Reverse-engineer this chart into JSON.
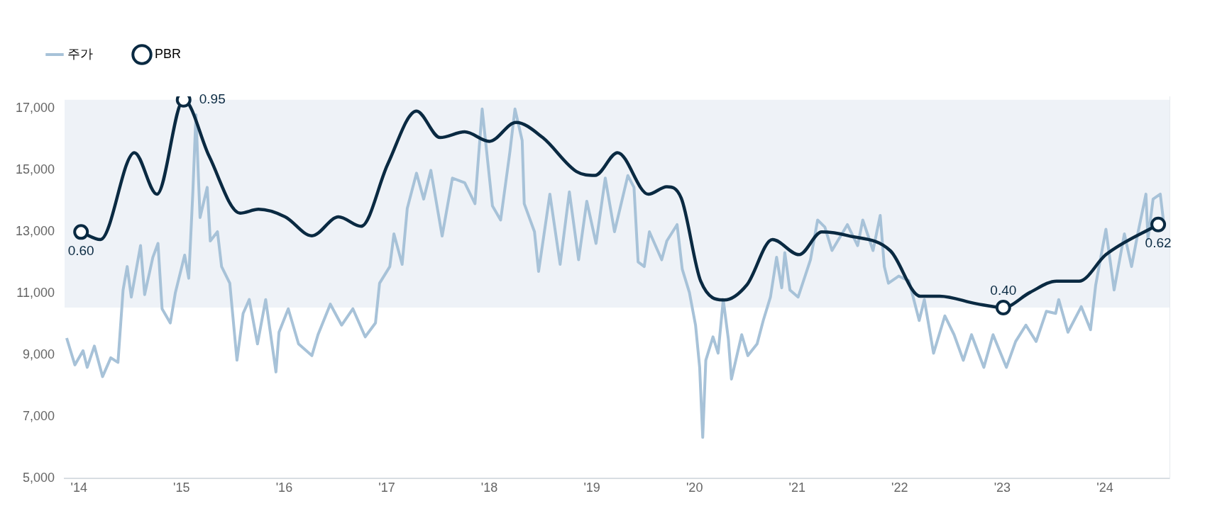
{
  "chart_data": {
    "type": "line",
    "legend": "top left",
    "grid": false,
    "xlim": [
      2013.86,
      2024.63
    ],
    "xticks": [
      {
        "value": 2014,
        "label": "'14"
      },
      {
        "value": 2015,
        "label": "'15"
      },
      {
        "value": 2016,
        "label": "'16"
      },
      {
        "value": 2017,
        "label": "'17"
      },
      {
        "value": 2018,
        "label": "'18"
      },
      {
        "value": 2019,
        "label": "'19"
      },
      {
        "value": 2020,
        "label": "'20"
      },
      {
        "value": 2021,
        "label": "'21"
      },
      {
        "value": 2022,
        "label": "'22"
      },
      {
        "value": 2023,
        "label": "'23"
      },
      {
        "value": 2024,
        "label": "'24"
      }
    ],
    "ylim": [
      5000,
      17400
    ],
    "yticks": [
      {
        "value": 5000,
        "label": "5,000"
      },
      {
        "value": 7000,
        "label": "7,000"
      },
      {
        "value": 9000,
        "label": "9,000"
      },
      {
        "value": 11000,
        "label": "11,000"
      },
      {
        "value": 13000,
        "label": "13,000"
      },
      {
        "value": 15000,
        "label": "15,000"
      },
      {
        "value": 17000,
        "label": "17,000"
      }
    ],
    "y2lim": [
      -0.053,
      0.959
    ],
    "bands": [
      {
        "axis": "y2",
        "from": 0.4,
        "to": 0.95,
        "color": "#eef2f7"
      }
    ],
    "series": [
      {
        "name": "주가",
        "color": "#a7c2d8",
        "marker": "none",
        "x": [
          2013.88,
          2013.96,
          2014.04,
          2014.08,
          2014.15,
          2014.23,
          2014.31,
          2014.38,
          2014.43,
          2014.47,
          2014.51,
          2014.6,
          2014.64,
          2014.72,
          2014.77,
          2014.81,
          2014.89,
          2014.94,
          2015.03,
          2015.07,
          2015.11,
          2015.14,
          2015.18,
          2015.25,
          2015.28,
          2015.35,
          2015.39,
          2015.47,
          2015.54,
          2015.6,
          2015.66,
          2015.74,
          2015.82,
          2015.92,
          2015.95,
          2016.04,
          2016.14,
          2016.27,
          2016.33,
          2016.45,
          2016.56,
          2016.67,
          2016.79,
          2016.89,
          2016.93,
          2017.03,
          2017.07,
          2017.15,
          2017.2,
          2017.29,
          2017.36,
          2017.43,
          2017.54,
          2017.64,
          2017.76,
          2017.86,
          2017.93,
          2018.03,
          2018.11,
          2018.2,
          2018.25,
          2018.32,
          2018.34,
          2018.44,
          2018.48,
          2018.59,
          2018.69,
          2018.78,
          2018.87,
          2018.95,
          2019.04,
          2019.13,
          2019.22,
          2019.35,
          2019.41,
          2019.45,
          2019.51,
          2019.56,
          2019.68,
          2019.73,
          2019.83,
          2019.88,
          2019.95,
          2020.01,
          2020.05,
          2020.08,
          2020.11,
          2020.18,
          2020.23,
          2020.28,
          2020.33,
          2020.36,
          2020.46,
          2020.52,
          2020.61,
          2020.67,
          2020.74,
          2020.8,
          2020.85,
          2020.88,
          2020.93,
          2021.01,
          2021.13,
          2021.2,
          2021.27,
          2021.34,
          2021.49,
          2021.59,
          2021.64,
          2021.74,
          2021.81,
          2021.85,
          2021.89,
          2021.99,
          2022.09,
          2022.19,
          2022.24,
          2022.33,
          2022.44,
          2022.53,
          2022.62,
          2022.7,
          2022.82,
          2022.91,
          2023.04,
          2023.13,
          2023.23,
          2023.33,
          2023.43,
          2023.52,
          2023.55,
          2023.64,
          2023.77,
          2023.86,
          2023.91,
          2024.01,
          2024.09,
          2024.19,
          2024.26,
          2024.32,
          2024.4,
          2024.42,
          2024.47,
          2024.54,
          2024.57
        ],
        "values": [
          9560,
          8690,
          9150,
          8610,
          9300,
          8310,
          8920,
          8770,
          11120,
          11880,
          10890,
          12560,
          10970,
          12180,
          12630,
          10510,
          10050,
          11040,
          12250,
          11500,
          14300,
          16800,
          13470,
          14450,
          12710,
          13010,
          11880,
          11340,
          8840,
          10360,
          10810,
          9370,
          10810,
          8460,
          9750,
          10510,
          9370,
          8990,
          9670,
          10660,
          9980,
          10510,
          9600,
          10050,
          11340,
          11880,
          12940,
          11950,
          13770,
          14910,
          14070,
          15000,
          12870,
          14750,
          14600,
          13920,
          16990,
          13850,
          13390,
          15590,
          16990,
          15970,
          13920,
          13010,
          11720,
          14230,
          11950,
          14300,
          12100,
          14000,
          12630,
          14750,
          13010,
          14830,
          14450,
          12030,
          11880,
          13010,
          12100,
          12710,
          13240,
          11800,
          11040,
          9980,
          8610,
          6340,
          8840,
          9600,
          9070,
          10810,
          9520,
          8230,
          9670,
          8990,
          9370,
          10130,
          10890,
          12180,
          11190,
          12330,
          11120,
          10890,
          12100,
          13390,
          13160,
          12400,
          13240,
          12560,
          13390,
          12400,
          13540,
          11880,
          11340,
          11570,
          11420,
          10130,
          10810,
          9070,
          10280,
          9670,
          8840,
          9670,
          8610,
          9670,
          8610,
          9450,
          9980,
          9450,
          10430,
          10360,
          10810,
          9750,
          10580,
          9830,
          11270,
          13090,
          11120,
          12940,
          11880,
          12940,
          14230,
          12780,
          14070,
          14230,
          13390
        ]
      },
      {
        "name": "PBR",
        "color": "#0a2a42",
        "axis": "y2",
        "x": [
          2014.02,
          2014.21,
          2014.54,
          2014.76,
          2015.02,
          2015.27,
          2015.57,
          2015.75,
          2016.01,
          2016.27,
          2016.53,
          2016.75,
          2017.01,
          2017.29,
          2017.52,
          2017.76,
          2018.0,
          2018.26,
          2018.52,
          2018.85,
          2019.03,
          2019.25,
          2019.55,
          2019.73,
          2019.87,
          2020.06,
          2020.29,
          2020.51,
          2020.76,
          2021.02,
          2021.24,
          2021.5,
          2021.91,
          2022.2,
          2022.39,
          2022.75,
          2023.01,
          2023.27,
          2023.53,
          2023.75,
          2024.01,
          2024.52
        ],
        "values": [
          0.6,
          0.58,
          0.81,
          0.7,
          0.95,
          0.8,
          0.65,
          0.66,
          0.64,
          0.59,
          0.64,
          0.615,
          0.78,
          0.92,
          0.85,
          0.865,
          0.84,
          0.89,
          0.85,
          0.76,
          0.75,
          0.81,
          0.7,
          0.72,
          0.69,
          0.47,
          0.42,
          0.46,
          0.58,
          0.54,
          0.6,
          0.59,
          0.55,
          0.43,
          0.43,
          0.41,
          0.4,
          0.44,
          0.47,
          0.47,
          0.54,
          0.62
        ],
        "value_labels": [
          "0.60",
          null,
          null,
          null,
          "0.95",
          null,
          null,
          null,
          null,
          null,
          null,
          null,
          null,
          null,
          null,
          null,
          null,
          null,
          null,
          null,
          null,
          null,
          null,
          null,
          null,
          null,
          null,
          null,
          null,
          null,
          null,
          null,
          null,
          null,
          null,
          null,
          "0.40",
          null,
          null,
          null,
          null,
          "0.62"
        ]
      }
    ]
  }
}
